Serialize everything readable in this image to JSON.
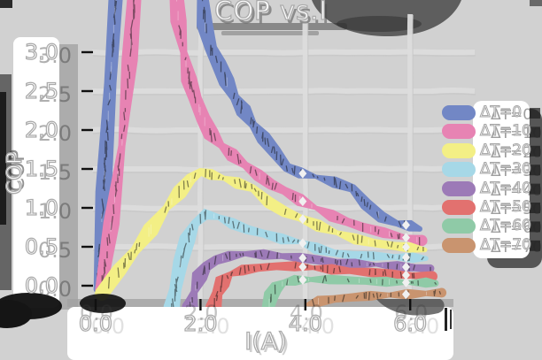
{
  "title": "COP vs.I",
  "axes": {
    "x_label": "I(A)",
    "y_label": "COP",
    "x_ticks": [
      "0.0",
      "2.0",
      "4.0",
      "6.0"
    ],
    "y_ticks": [
      "3.0",
      "2.5",
      "2.0",
      "1.5",
      "1.0",
      "0.5",
      "0.0"
    ]
  },
  "legend": {
    "entries": [
      {
        "label": "ΔT=0",
        "color": "#7287c5"
      },
      {
        "label": "ΔT=10",
        "color": "#e783b3"
      },
      {
        "label": "ΔT=20",
        "color": "#f3ef85"
      },
      {
        "label": "ΔT=30",
        "color": "#a6d8e7"
      },
      {
        "label": "ΔT=40",
        "color": "#9c7ab7"
      },
      {
        "label": "ΔT=50",
        "color": "#e2716f"
      },
      {
        "label": "ΔT=60",
        "color": "#8fcaa7"
      },
      {
        "label": "ΔT=70",
        "color": "#c9946f"
      }
    ]
  },
  "chart_data": {
    "type": "line",
    "title": "COP vs.I",
    "xlabel": "I(A)",
    "ylabel": "COP",
    "xlim": [
      0,
      6.6
    ],
    "ylim": [
      -0.3,
      3.7
    ],
    "x_tick_values": [
      0,
      2,
      4,
      6
    ],
    "y_tick_values": [
      0,
      0.5,
      1.0,
      1.5,
      2.0,
      2.5,
      3.0
    ],
    "grid": true,
    "legend_position": "right",
    "marker_currents": [
      3.95,
      5.92
    ],
    "series": [
      {
        "name": "ΔT=0",
        "color": "#7287c5",
        "segments": [
          [
            [
              0.02,
              -0.05
            ],
            [
              0.15,
              1.2
            ],
            [
              0.28,
              2.6
            ],
            [
              0.42,
              4.1
            ]
          ],
          [
            [
              2.0,
              4.1
            ],
            [
              2.08,
              3.35
            ],
            [
              2.2,
              3.05
            ],
            [
              2.35,
              2.85
            ],
            [
              2.5,
              2.62
            ],
            [
              2.65,
              2.42
            ],
            [
              2.82,
              2.25
            ],
            [
              3.0,
              2.07
            ],
            [
              3.2,
              1.9
            ],
            [
              3.42,
              1.72
            ],
            [
              3.65,
              1.52
            ],
            [
              3.9,
              1.45
            ],
            [
              4.2,
              1.4
            ],
            [
              4.55,
              1.33
            ],
            [
              4.9,
              1.25
            ],
            [
              5.15,
              1.05
            ],
            [
              5.45,
              0.88
            ],
            [
              5.75,
              0.8
            ],
            [
              6.0,
              0.77
            ],
            [
              6.18,
              0.73
            ]
          ]
        ]
      },
      {
        "name": "ΔT=10",
        "color": "#e783b3",
        "segments": [
          [
            [
              0.1,
              -0.05
            ],
            [
              0.3,
              0.8
            ],
            [
              0.5,
              1.8
            ],
            [
              0.65,
              2.9
            ],
            [
              0.78,
              4.1
            ]
          ],
          [
            [
              1.5,
              4.1
            ],
            [
              1.58,
              3.4
            ],
            [
              1.68,
              3.0
            ],
            [
              1.78,
              2.65
            ],
            [
              1.9,
              2.4
            ],
            [
              2.05,
              2.15
            ],
            [
              2.2,
              1.95
            ],
            [
              2.4,
              1.8
            ],
            [
              2.6,
              1.68
            ],
            [
              2.85,
              1.55
            ],
            [
              3.1,
              1.42
            ],
            [
              3.35,
              1.3
            ],
            [
              3.6,
              1.22
            ],
            [
              3.9,
              1.1
            ],
            [
              4.2,
              1.0
            ],
            [
              4.5,
              0.9
            ],
            [
              4.8,
              0.82
            ],
            [
              5.1,
              0.75
            ],
            [
              5.5,
              0.68
            ],
            [
              5.9,
              0.62
            ],
            [
              6.22,
              0.58
            ]
          ]
        ]
      },
      {
        "name": "ΔT=20",
        "color": "#f3ef85",
        "segments": [
          [
            [
              0.12,
              -0.1
            ],
            [
              0.45,
              0.2
            ],
            [
              0.75,
              0.45
            ],
            [
              1.05,
              0.72
            ],
            [
              1.35,
              1.0
            ],
            [
              1.6,
              1.2
            ],
            [
              1.82,
              1.38
            ],
            [
              2.0,
              1.46
            ],
            [
              2.2,
              1.43
            ],
            [
              2.45,
              1.38
            ],
            [
              2.7,
              1.32
            ],
            [
              3.0,
              1.25
            ],
            [
              3.3,
              1.07
            ],
            [
              3.6,
              0.95
            ],
            [
              3.9,
              0.87
            ],
            [
              4.25,
              0.77
            ],
            [
              4.6,
              0.68
            ],
            [
              4.95,
              0.6
            ],
            [
              5.3,
              0.55
            ],
            [
              5.7,
              0.51
            ],
            [
              6.0,
              0.49
            ],
            [
              6.28,
              0.46
            ]
          ]
        ]
      },
      {
        "name": "ΔT=30",
        "color": "#a6d8e7",
        "segments": [
          [
            [
              1.45,
              -0.28
            ],
            [
              1.52,
              -0.05
            ],
            [
              1.62,
              0.3
            ],
            [
              1.75,
              0.6
            ],
            [
              1.9,
              0.8
            ],
            [
              2.1,
              0.92
            ],
            [
              2.35,
              0.88
            ],
            [
              2.6,
              0.8
            ],
            [
              2.9,
              0.72
            ],
            [
              3.2,
              0.67
            ],
            [
              3.55,
              0.6
            ],
            [
              3.9,
              0.56
            ],
            [
              4.2,
              0.48
            ],
            [
              4.55,
              0.42
            ],
            [
              4.9,
              0.39
            ],
            [
              5.3,
              0.38
            ],
            [
              5.7,
              0.37
            ],
            [
              6.05,
              0.36
            ],
            [
              6.3,
              0.35
            ]
          ]
        ]
      },
      {
        "name": "ΔT=40",
        "color": "#9c7ab7",
        "segments": [
          [
            [
              1.8,
              -0.28
            ],
            [
              1.88,
              -0.08
            ],
            [
              1.98,
              0.12
            ],
            [
              2.12,
              0.25
            ],
            [
              2.3,
              0.33
            ],
            [
              2.55,
              0.38
            ],
            [
              2.85,
              0.41
            ],
            [
              3.2,
              0.4
            ],
            [
              3.55,
              0.38
            ],
            [
              3.9,
              0.36
            ],
            [
              4.25,
              0.33
            ],
            [
              4.6,
              0.3
            ],
            [
              4.95,
              0.28
            ],
            [
              5.35,
              0.27
            ],
            [
              5.75,
              0.25
            ],
            [
              6.1,
              0.23
            ],
            [
              6.38,
              0.22
            ]
          ]
        ]
      },
      {
        "name": "ΔT=50",
        "color": "#e2716f",
        "segments": [
          [
            [
              2.25,
              -0.28
            ],
            [
              2.32,
              -0.1
            ],
            [
              2.42,
              0.05
            ],
            [
              2.58,
              0.15
            ],
            [
              2.8,
              0.2
            ],
            [
              3.1,
              0.23
            ],
            [
              3.45,
              0.25
            ],
            [
              3.8,
              0.25
            ],
            [
              4.15,
              0.23
            ],
            [
              4.5,
              0.21
            ],
            [
              4.85,
              0.19
            ],
            [
              5.25,
              0.17
            ],
            [
              5.65,
              0.15
            ],
            [
              6.05,
              0.13
            ],
            [
              6.42,
              0.12
            ]
          ]
        ]
      },
      {
        "name": "ΔT=60",
        "color": "#8fcaa7",
        "segments": [
          [
            [
              3.28,
              -0.3
            ],
            [
              3.35,
              -0.12
            ],
            [
              3.45,
              -0.02
            ],
            [
              3.6,
              0.04
            ],
            [
              3.8,
              0.07
            ],
            [
              4.1,
              0.08
            ],
            [
              4.45,
              0.08
            ],
            [
              4.8,
              0.07
            ],
            [
              5.15,
              0.06
            ],
            [
              5.55,
              0.05
            ],
            [
              5.95,
              0.04
            ],
            [
              6.3,
              0.04
            ],
            [
              6.48,
              0.03
            ]
          ]
        ]
      },
      {
        "name": "ΔT=70",
        "color": "#c9946f",
        "segments": [
          [
            [
              4.05,
              -0.24
            ],
            [
              4.25,
              -0.2
            ],
            [
              4.55,
              -0.17
            ],
            [
              4.9,
              -0.15
            ],
            [
              5.25,
              -0.13
            ],
            [
              5.6,
              -0.12
            ],
            [
              5.95,
              -0.11
            ],
            [
              6.3,
              -0.1
            ],
            [
              6.6,
              -0.09
            ]
          ]
        ]
      }
    ]
  },
  "colors": {
    "figure_background": "#d1d1d1",
    "label_band": "#ffffff",
    "shadow_dark": "#4f4f4f",
    "text_fill": "#ffffff",
    "text_outline": "#ababab",
    "gridline": "#dcdcdc"
  }
}
